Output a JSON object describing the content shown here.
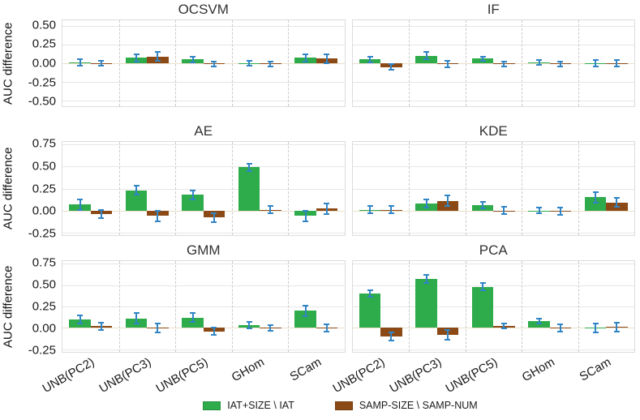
{
  "figure": {
    "ylabel": "AUC difference",
    "categories": [
      "UNB(PC2)",
      "UNB(PC3)",
      "UNB(PC5)",
      "GHom",
      "SCam"
    ],
    "legend": [
      {
        "label": "IAT+SIZE \\ IAT",
        "color": "#2eab4a"
      },
      {
        "label": "SAMP-SIZE \\ SAMP-NUM",
        "color": "#8b4a15"
      }
    ],
    "errorbar_color": "#3185c5"
  },
  "chart_data": [
    {
      "type": "bar",
      "title": "OCSVM",
      "categories": [
        "UNB(PC2)",
        "UNB(PC3)",
        "UNB(PC5)",
        "GHom",
        "SCam"
      ],
      "ylabel": "AUC difference",
      "ylim": [
        -0.57,
        0.57
      ],
      "yticks": [
        0.5,
        0.25,
        0.0,
        -0.25,
        -0.5
      ],
      "series": [
        {
          "name": "IAT+SIZE \\ IAT",
          "values": [
            0.01,
            0.07,
            0.05,
            0.0,
            0.07
          ],
          "errors": [
            0.04,
            0.05,
            0.04,
            0.03,
            0.05
          ]
        },
        {
          "name": "SAMP-SIZE \\ SAMP-NUM",
          "values": [
            0.0,
            0.09,
            -0.01,
            -0.01,
            0.06
          ],
          "errors": [
            0.03,
            0.06,
            0.03,
            0.03,
            0.06
          ]
        }
      ]
    },
    {
      "type": "bar",
      "title": "IF",
      "categories": [
        "UNB(PC2)",
        "UNB(PC3)",
        "UNB(PC5)",
        "GHom",
        "SCam"
      ],
      "ylabel": "AUC difference",
      "ylim": [
        -0.57,
        0.57
      ],
      "yticks": [
        0.5,
        0.25,
        0.0,
        -0.25,
        -0.5
      ],
      "series": [
        {
          "name": "IAT+SIZE \\ IAT",
          "values": [
            0.05,
            0.1,
            0.06,
            0.01,
            0.0
          ],
          "errors": [
            0.04,
            0.05,
            0.03,
            0.03,
            0.04
          ]
        },
        {
          "name": "SAMP-SIZE \\ SAMP-NUM",
          "values": [
            -0.05,
            -0.01,
            -0.01,
            -0.01,
            0.0
          ],
          "errors": [
            0.04,
            0.04,
            0.03,
            0.03,
            0.04
          ]
        }
      ]
    },
    {
      "type": "bar",
      "title": "AE",
      "categories": [
        "UNB(PC2)",
        "UNB(PC3)",
        "UNB(PC5)",
        "GHom",
        "SCam"
      ],
      "ylabel": "AUC difference",
      "ylim": [
        -0.28,
        0.78
      ],
      "yticks": [
        0.75,
        0.5,
        0.25,
        0.0,
        -0.25
      ],
      "series": [
        {
          "name": "IAT+SIZE \\ IAT",
          "values": [
            0.07,
            0.23,
            0.18,
            0.49,
            -0.06
          ],
          "errors": [
            0.06,
            0.05,
            0.05,
            0.04,
            0.06
          ]
        },
        {
          "name": "SAMP-SIZE \\ SAMP-NUM",
          "values": [
            -0.04,
            -0.06,
            -0.08,
            0.01,
            0.02
          ],
          "errors": [
            0.05,
            0.06,
            0.05,
            0.04,
            0.06
          ]
        }
      ]
    },
    {
      "type": "bar",
      "title": "KDE",
      "categories": [
        "UNB(PC2)",
        "UNB(PC3)",
        "UNB(PC5)",
        "GHom",
        "SCam"
      ],
      "ylabel": "AUC difference",
      "ylim": [
        -0.28,
        0.78
      ],
      "yticks": [
        0.75,
        0.5,
        0.25,
        0.0,
        -0.25
      ],
      "series": [
        {
          "name": "IAT+SIZE \\ IAT",
          "values": [
            0.01,
            0.08,
            0.06,
            0.0,
            0.15
          ],
          "errors": [
            0.04,
            0.05,
            0.04,
            0.03,
            0.06
          ]
        },
        {
          "name": "SAMP-SIZE \\ SAMP-NUM",
          "values": [
            0.01,
            0.11,
            0.0,
            -0.01,
            0.09
          ],
          "errors": [
            0.04,
            0.06,
            0.04,
            0.04,
            0.05
          ]
        }
      ]
    },
    {
      "type": "bar",
      "title": "GMM",
      "categories": [
        "UNB(PC2)",
        "UNB(PC3)",
        "UNB(PC5)",
        "GHom",
        "SCam"
      ],
      "ylabel": "AUC difference",
      "ylim": [
        -0.28,
        0.78
      ],
      "yticks": [
        0.75,
        0.5,
        0.25,
        0.0,
        -0.25
      ],
      "series": [
        {
          "name": "IAT+SIZE \\ IAT",
          "values": [
            0.1,
            0.11,
            0.12,
            0.03,
            0.2
          ],
          "errors": [
            0.05,
            0.06,
            0.05,
            0.04,
            0.06
          ]
        },
        {
          "name": "SAMP-SIZE \\ SAMP-NUM",
          "values": [
            0.02,
            0.0,
            -0.04,
            0.0,
            0.0
          ],
          "errors": [
            0.04,
            0.05,
            0.04,
            0.03,
            0.04
          ]
        }
      ]
    },
    {
      "type": "bar",
      "title": "PCA",
      "categories": [
        "UNB(PC2)",
        "UNB(PC3)",
        "UNB(PC5)",
        "GHom",
        "SCam"
      ],
      "ylabel": "AUC difference",
      "ylim": [
        -0.28,
        0.78
      ],
      "yticks": [
        0.75,
        0.5,
        0.25,
        0.0,
        -0.25
      ],
      "series": [
        {
          "name": "IAT+SIZE \\ IAT",
          "values": [
            0.4,
            0.57,
            0.48,
            0.08,
            0.0
          ],
          "errors": [
            0.04,
            0.05,
            0.04,
            0.03,
            0.05
          ]
        },
        {
          "name": "SAMP-SIZE \\ SAMP-NUM",
          "values": [
            -0.1,
            -0.08,
            0.02,
            0.0,
            0.01
          ],
          "errors": [
            0.05,
            0.06,
            0.03,
            0.04,
            0.05
          ]
        }
      ]
    }
  ]
}
